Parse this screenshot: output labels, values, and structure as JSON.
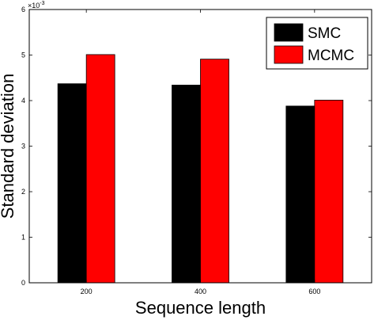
{
  "chart_data": {
    "type": "bar",
    "categories": [
      "200",
      "400",
      "600"
    ],
    "series": [
      {
        "name": "SMC",
        "values": [
          0.00437,
          0.00434,
          0.00388
        ],
        "color": "#000000"
      },
      {
        "name": "MCMC",
        "values": [
          0.00501,
          0.00491,
          0.00401
        ],
        "color": "#ff0000"
      }
    ],
    "xlabel": "Sequence length",
    "ylabel": "Standard deviation",
    "ylim": [
      0,
      0.006
    ],
    "yticks": [
      0,
      0.001,
      0.002,
      0.003,
      0.004,
      0.005,
      0.006
    ],
    "ytick_labels": [
      "0",
      "1",
      "2",
      "3",
      "4",
      "5",
      "6"
    ],
    "y_multiplier": {
      "base": "×10",
      "exponent": "-3"
    },
    "legend_position": "top-right",
    "grid": false
  }
}
